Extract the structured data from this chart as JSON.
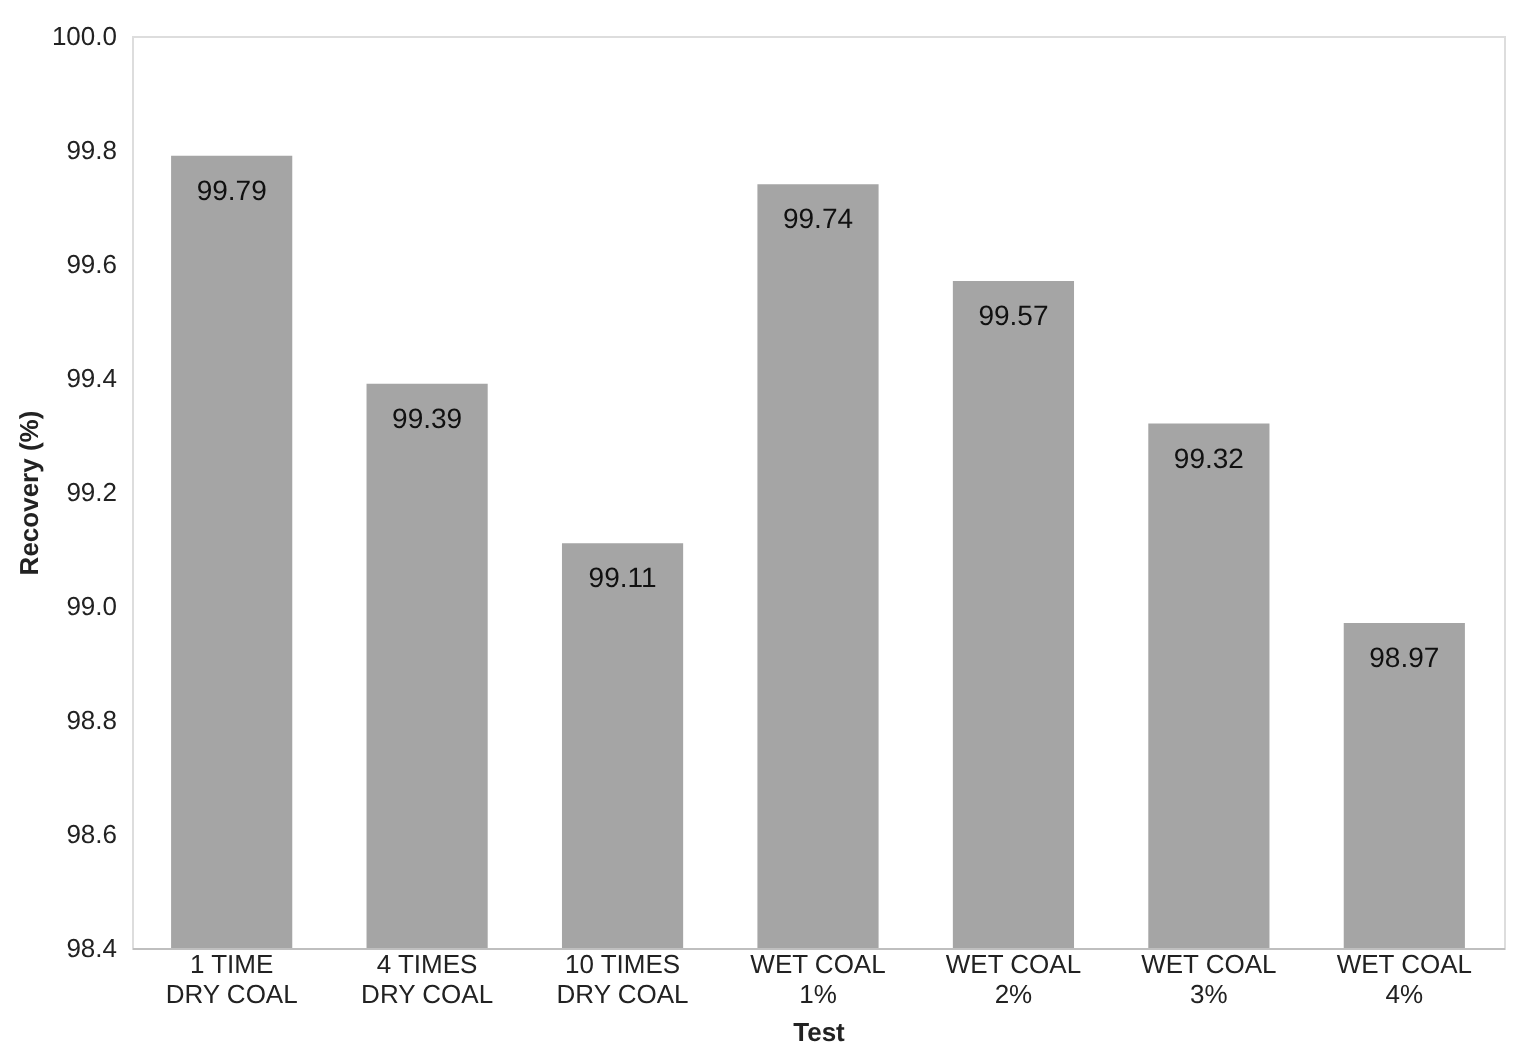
{
  "chart_data": {
    "type": "bar",
    "xlabel": "Test",
    "ylabel": "Recovery (%)",
    "categories": [
      "1 TIME\nDRY COAL",
      "4 TIMES\nDRY COAL",
      "10 TIMES\nDRY COAL",
      "WET COAL\n1%",
      "WET COAL\n2%",
      "WET COAL\n3%",
      "WET COAL\n4%"
    ],
    "values": [
      99.79,
      99.39,
      99.11,
      99.74,
      99.57,
      99.32,
      98.97
    ],
    "color": "#a5a5a5",
    "ylim": [
      98.4,
      100.0
    ],
    "yticks": [
      {
        "value": 98.4,
        "label": "98.4"
      },
      {
        "value": 98.6,
        "label": "98.6"
      },
      {
        "value": 98.8,
        "label": "98.8"
      },
      {
        "value": 99.0,
        "label": "99.0"
      },
      {
        "value": 99.2,
        "label": "99.2"
      },
      {
        "value": 99.4,
        "label": "99.4"
      },
      {
        "value": 99.6,
        "label": "99.6"
      },
      {
        "value": 99.8,
        "label": "99.8"
      },
      {
        "value": 100.0,
        "label": "100.0"
      }
    ],
    "data_labels": true,
    "grid": false
  }
}
